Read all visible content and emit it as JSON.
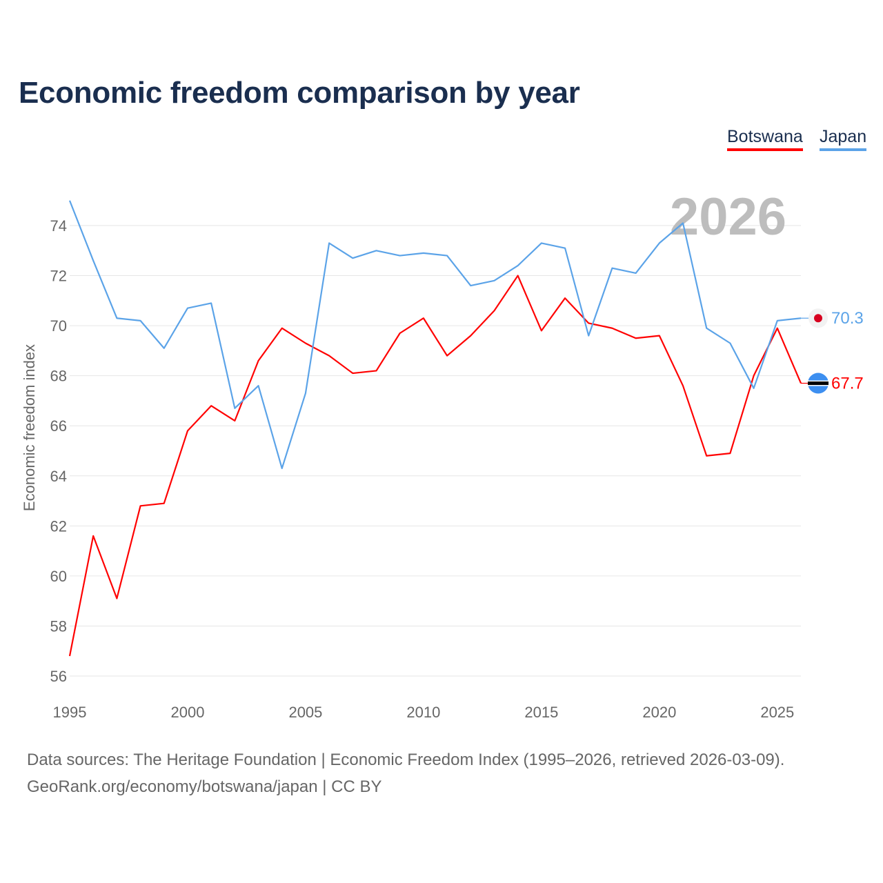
{
  "title": "Economic freedom comparison by year",
  "legend": [
    {
      "label": "Botswana",
      "color": "#ff0000"
    },
    {
      "label": "Japan",
      "color": "#5ba3e8"
    }
  ],
  "year_watermark": "2026",
  "source_line1": "Data sources: The Heritage Foundation | Economic Freedom Index (1995–2026, retrieved 2026-03-09).",
  "source_line2": "GeoRank.org/economy/botswana/japan | CC BY",
  "chart_data": {
    "type": "line",
    "title": "Economic freedom comparison by year",
    "xlabel": "",
    "ylabel": "Economic freedom index",
    "xlim": [
      1995,
      2026
    ],
    "ylim": [
      56,
      75
    ],
    "x_ticks": [
      1995,
      2000,
      2005,
      2010,
      2015,
      2020,
      2025
    ],
    "y_ticks": [
      56,
      58,
      60,
      62,
      64,
      66,
      68,
      70,
      72,
      74
    ],
    "grid": true,
    "legend_position": "top-right",
    "x": [
      1995,
      1996,
      1997,
      1998,
      1999,
      2000,
      2001,
      2002,
      2003,
      2004,
      2005,
      2006,
      2007,
      2008,
      2009,
      2010,
      2011,
      2012,
      2013,
      2014,
      2015,
      2016,
      2017,
      2018,
      2019,
      2020,
      2021,
      2022,
      2023,
      2024,
      2025,
      2026
    ],
    "series": [
      {
        "name": "Botswana",
        "color": "#ff0000",
        "end_label": "67.7",
        "values": [
          56.8,
          61.6,
          59.1,
          62.8,
          62.9,
          65.8,
          66.8,
          66.2,
          68.6,
          69.9,
          69.3,
          68.8,
          68.1,
          68.2,
          69.7,
          70.3,
          68.8,
          69.6,
          70.6,
          72.0,
          69.8,
          71.1,
          70.1,
          69.9,
          69.5,
          69.6,
          67.6,
          64.8,
          64.9,
          68.0,
          69.9,
          67.7
        ]
      },
      {
        "name": "Japan",
        "color": "#5ba3e8",
        "end_label": "70.3",
        "values": [
          75.0,
          72.6,
          70.3,
          70.2,
          69.1,
          70.7,
          70.9,
          66.7,
          67.6,
          64.3,
          67.3,
          73.3,
          72.7,
          73.0,
          72.8,
          72.9,
          72.8,
          71.6,
          71.8,
          72.4,
          73.3,
          73.1,
          69.6,
          72.3,
          72.1,
          73.3,
          74.1,
          69.9,
          69.3,
          67.5,
          70.2,
          70.3
        ]
      }
    ]
  }
}
